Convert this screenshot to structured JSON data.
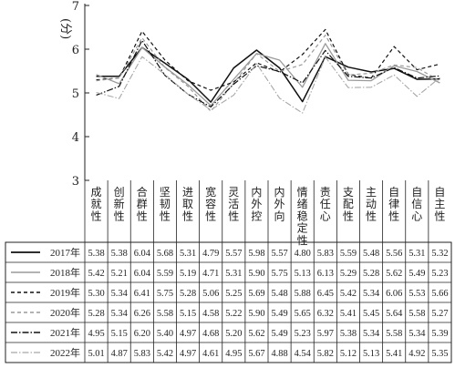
{
  "chart_data": {
    "type": "line",
    "ylabel": "(分)",
    "ylim": [
      3,
      7
    ],
    "yticks": [
      3,
      4,
      5,
      6,
      7
    ],
    "grid": false,
    "legend": "table-bottom",
    "categories": [
      "成就性",
      "创新性",
      "合群性",
      "坚韧性",
      "进取性",
      "宽容性",
      "灵活性",
      "内外控",
      "内外向",
      "情绪稳定性",
      "责任心",
      "支配性",
      "主动性",
      "自律性",
      "自信心",
      "自主性"
    ],
    "series": [
      {
        "name": "2017年",
        "color": "#111111",
        "dash": "",
        "width": 1.5,
        "values": [
          5.38,
          5.38,
          6.04,
          5.68,
          5.31,
          4.79,
          5.57,
          5.98,
          5.57,
          4.8,
          5.83,
          5.59,
          5.48,
          5.56,
          5.31,
          5.32
        ]
      },
      {
        "name": "2018年",
        "color": "#9a9a9a",
        "dash": "",
        "width": 1.3,
        "values": [
          5.42,
          5.21,
          6.04,
          5.59,
          5.19,
          4.71,
          5.31,
          5.9,
          5.75,
          5.13,
          6.13,
          5.29,
          5.28,
          5.62,
          5.49,
          5.23
        ]
      },
      {
        "name": "2019年",
        "color": "#111111",
        "dash": "4,3",
        "width": 1.2,
        "values": [
          5.3,
          5.34,
          6.41,
          5.75,
          5.28,
          5.06,
          5.25,
          5.69,
          5.48,
          5.88,
          6.45,
          5.42,
          5.34,
          6.06,
          5.53,
          5.66
        ]
      },
      {
        "name": "2020年",
        "color": "#9a9a9a",
        "dash": "4,3",
        "width": 1.2,
        "values": [
          5.28,
          5.34,
          6.26,
          5.58,
          5.15,
          4.58,
          5.22,
          5.9,
          5.49,
          5.65,
          6.32,
          5.41,
          5.45,
          5.64,
          5.58,
          5.27
        ]
      },
      {
        "name": "2021年",
        "color": "#111111",
        "dash": "7,2,1.5,2",
        "width": 1.2,
        "values": [
          4.95,
          5.15,
          6.2,
          5.4,
          4.97,
          4.68,
          5.2,
          5.62,
          5.49,
          5.23,
          5.97,
          5.38,
          5.34,
          5.58,
          5.34,
          5.39
        ]
      },
      {
        "name": "2022年",
        "color": "#a8a8a8",
        "dash": "7,2,1.5,2",
        "width": 1.1,
        "values": [
          5.01,
          4.87,
          5.83,
          5.42,
          4.97,
          4.61,
          4.95,
          5.67,
          4.88,
          4.54,
          5.82,
          5.12,
          5.13,
          5.41,
          4.92,
          5.35
        ]
      }
    ]
  }
}
